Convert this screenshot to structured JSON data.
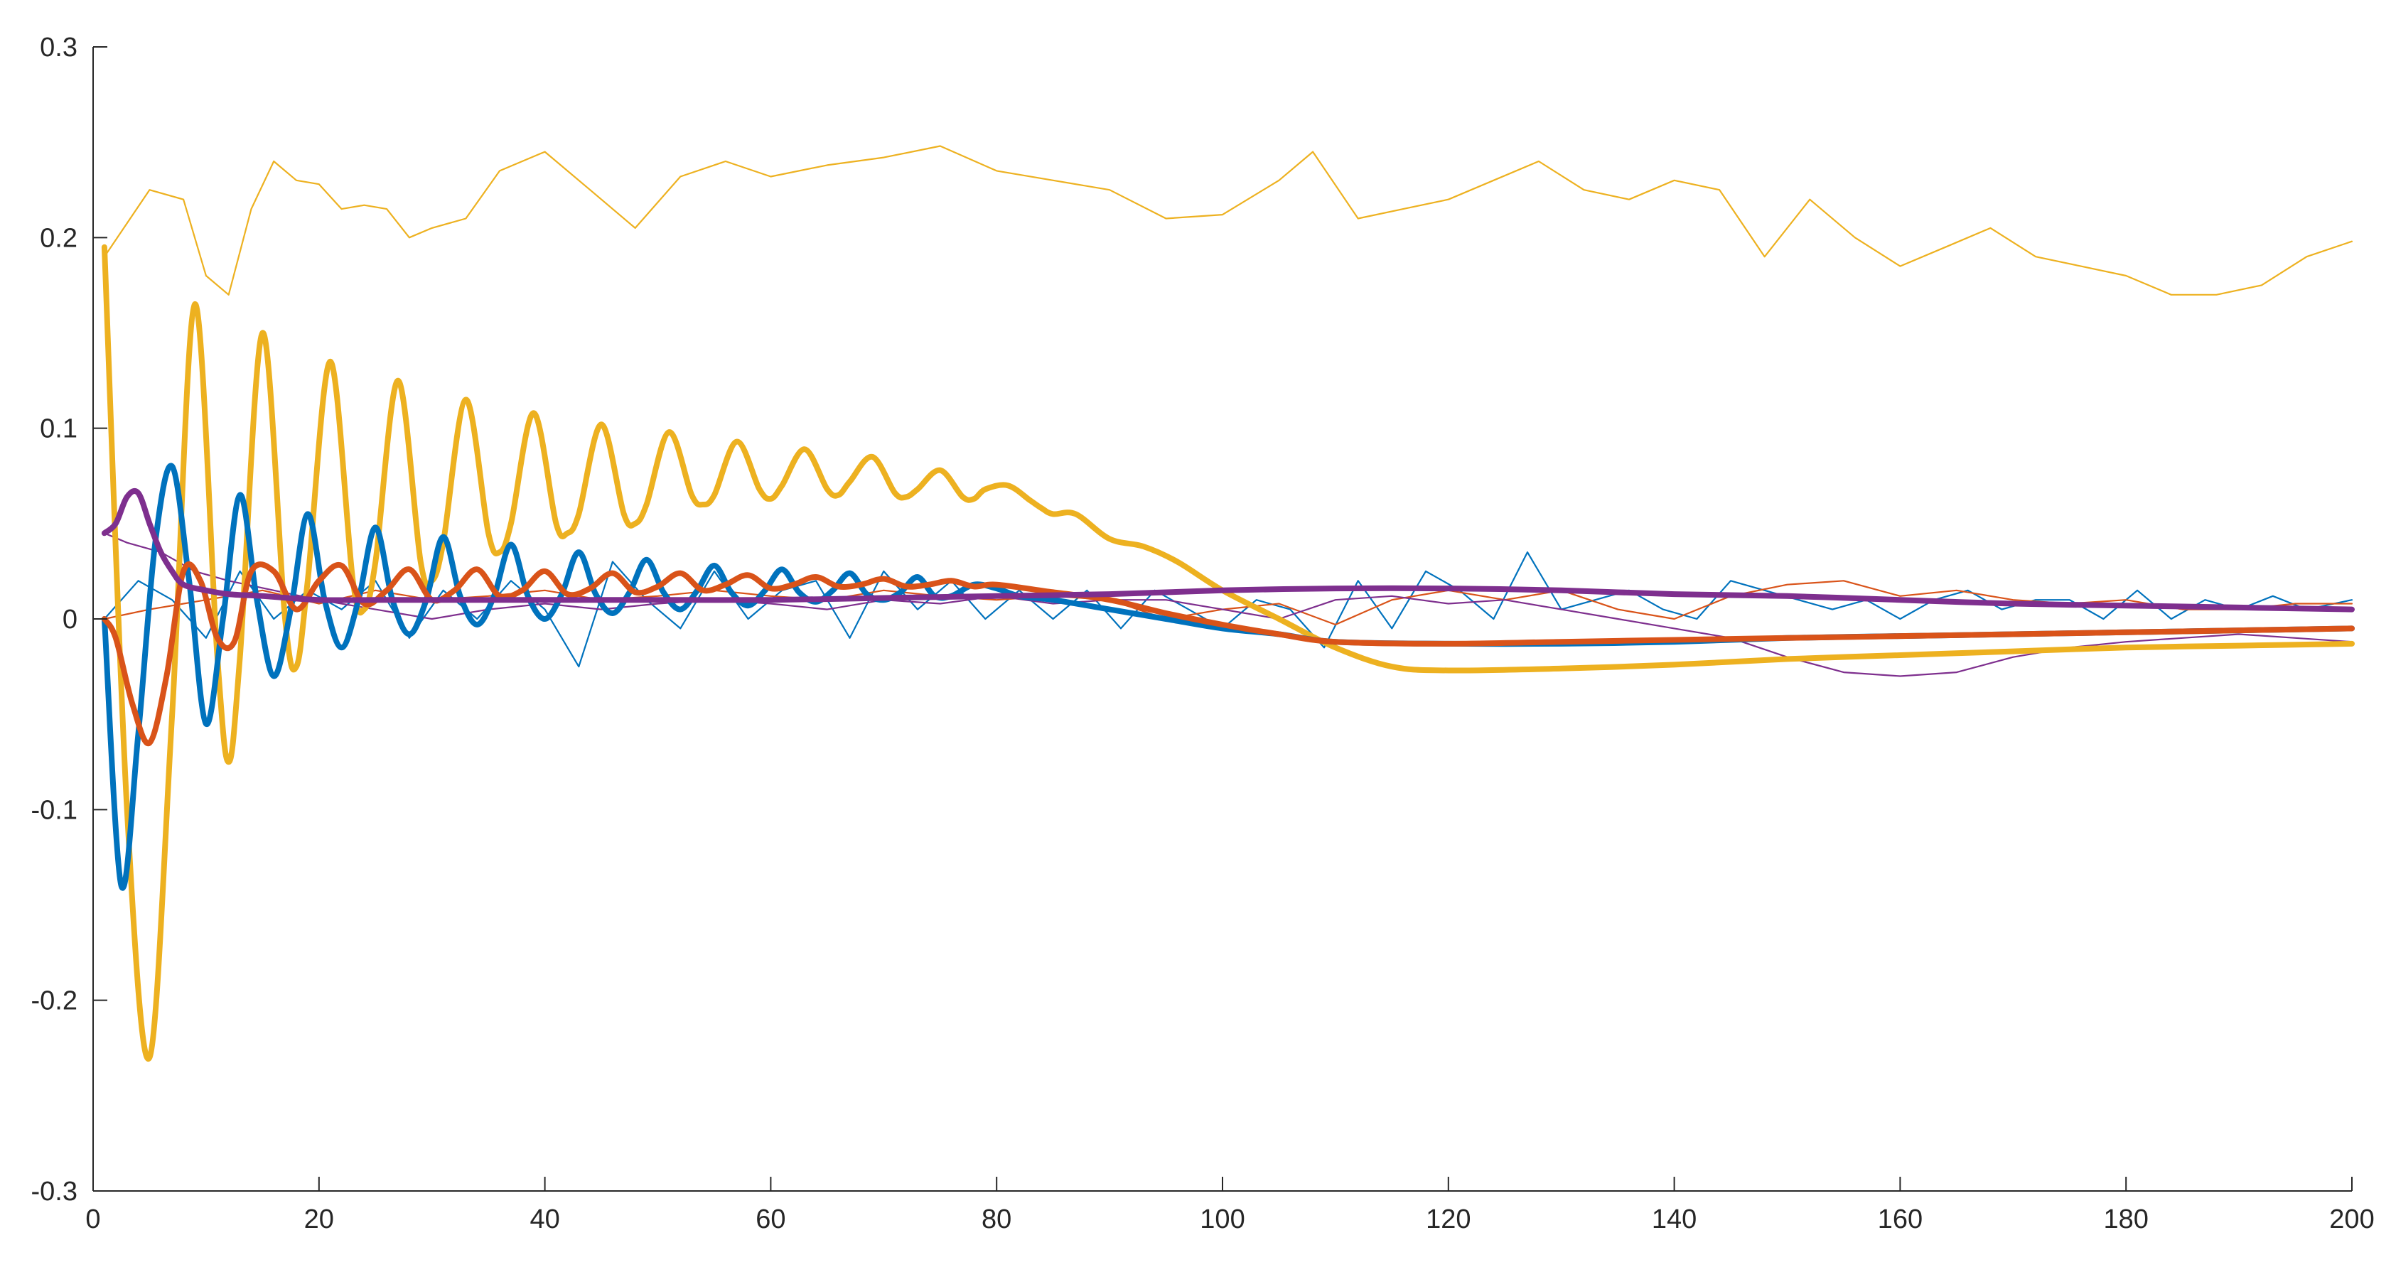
{
  "chart_data": {
    "type": "line",
    "title": "",
    "xlabel": "",
    "ylabel": "",
    "xlim": [
      0,
      200
    ],
    "ylim": [
      -0.3,
      0.3
    ],
    "x_ticks": [
      "0",
      "20",
      "40",
      "60",
      "80",
      "100",
      "120",
      "140",
      "160",
      "180",
      "200"
    ],
    "y_ticks": [
      "-0.3",
      "-0.2",
      "-0.1",
      "0",
      "0.1",
      "0.2",
      "0.3"
    ],
    "grid": false,
    "legend": "none",
    "colors": {
      "blue": "#0072bd",
      "orange": "#d95319",
      "yellow": "#edb120",
      "purple": "#7e2f8e"
    },
    "series": [
      {
        "color": "#edb120",
        "weight": "thin",
        "x": [
          1,
          5,
          8,
          10,
          12,
          14,
          16,
          18,
          20,
          22,
          24,
          26,
          28,
          30,
          33,
          36,
          40,
          44,
          48,
          52,
          56,
          60,
          65,
          70,
          75,
          80,
          85,
          90,
          95,
          100,
          105,
          108,
          112,
          116,
          120,
          124,
          128,
          132,
          136,
          140,
          144,
          148,
          152,
          156,
          160,
          164,
          168,
          172,
          176,
          180,
          184,
          188,
          192,
          196,
          200
        ],
        "y": [
          0.19,
          0.225,
          0.22,
          0.18,
          0.17,
          0.215,
          0.24,
          0.23,
          0.228,
          0.215,
          0.217,
          0.215,
          0.2,
          0.205,
          0.21,
          0.235,
          0.245,
          0.225,
          0.205,
          0.232,
          0.24,
          0.232,
          0.238,
          0.242,
          0.248,
          0.235,
          0.23,
          0.225,
          0.21,
          0.212,
          0.23,
          0.245,
          0.21,
          0.215,
          0.22,
          0.23,
          0.24,
          0.225,
          0.22,
          0.23,
          0.225,
          0.19,
          0.22,
          0.2,
          0.185,
          0.195,
          0.205,
          0.19,
          0.185,
          0.18,
          0.17,
          0.17,
          0.175,
          0.19,
          0.198
        ]
      },
      {
        "color": "#0072bd",
        "weight": "thin",
        "x": [
          1,
          4,
          7,
          10,
          13,
          16,
          19,
          22,
          25,
          28,
          31,
          34,
          37,
          40,
          43,
          46,
          49,
          52,
          55,
          58,
          61,
          64,
          67,
          70,
          73,
          76,
          79,
          82,
          85,
          88,
          91,
          94,
          97,
          100,
          103,
          106,
          109,
          112,
          115,
          118,
          121,
          124,
          127,
          130,
          133,
          136,
          139,
          142,
          145,
          148,
          151,
          154,
          157,
          160,
          163,
          166,
          169,
          172,
          175,
          178,
          181,
          184,
          187,
          190,
          193,
          196,
          200
        ],
        "y": [
          0.0,
          0.02,
          0.01,
          -0.01,
          0.025,
          0.0,
          0.015,
          0.005,
          0.02,
          -0.01,
          0.015,
          0.0,
          0.02,
          0.005,
          -0.025,
          0.03,
          0.01,
          -0.005,
          0.025,
          0.0,
          0.015,
          0.02,
          -0.01,
          0.025,
          0.005,
          0.02,
          0.0,
          0.015,
          0.0,
          0.015,
          -0.005,
          0.015,
          0.005,
          -0.005,
          0.01,
          0.005,
          -0.015,
          0.02,
          -0.005,
          0.025,
          0.015,
          0.0,
          0.035,
          0.005,
          0.01,
          0.015,
          0.005,
          0.0,
          0.02,
          0.015,
          0.01,
          0.005,
          0.01,
          0.0,
          0.01,
          0.015,
          0.005,
          0.01,
          0.01,
          0.0,
          0.015,
          0.0,
          0.01,
          0.005,
          0.012,
          0.005,
          0.01
        ]
      },
      {
        "color": "#d95319",
        "weight": "thin",
        "x": [
          1,
          5,
          10,
          15,
          20,
          25,
          30,
          35,
          40,
          45,
          50,
          55,
          60,
          65,
          70,
          75,
          80,
          85,
          90,
          95,
          100,
          105,
          110,
          115,
          120,
          125,
          130,
          135,
          140,
          145,
          150,
          155,
          160,
          165,
          170,
          175,
          180,
          185,
          190,
          195,
          200
        ],
        "y": [
          0.0,
          0.005,
          0.01,
          0.015,
          0.008,
          0.015,
          0.01,
          0.012,
          0.015,
          0.01,
          0.012,
          0.015,
          0.012,
          0.01,
          0.015,
          0.012,
          0.01,
          0.012,
          0.01,
          0.0,
          0.005,
          0.008,
          -0.003,
          0.01,
          0.015,
          0.01,
          0.015,
          0.005,
          0.0,
          0.012,
          0.018,
          0.02,
          0.012,
          0.015,
          0.01,
          0.008,
          0.01,
          0.005,
          0.005,
          0.008,
          0.008
        ]
      },
      {
        "color": "#7e2f8e",
        "weight": "thin",
        "x": [
          1,
          3,
          6,
          9,
          12,
          16,
          20,
          25,
          30,
          35,
          40,
          45,
          50,
          55,
          60,
          65,
          70,
          75,
          80,
          85,
          90,
          95,
          100,
          105,
          110,
          115,
          120,
          125,
          130,
          135,
          140,
          145,
          150,
          155,
          160,
          165,
          170,
          175,
          180,
          185,
          190,
          195,
          200
        ],
        "y": [
          0.045,
          0.04,
          0.035,
          0.025,
          0.02,
          0.015,
          0.01,
          0.005,
          0.0,
          0.005,
          0.008,
          0.005,
          0.008,
          0.01,
          0.008,
          0.005,
          0.01,
          0.008,
          0.012,
          0.008,
          0.01,
          0.01,
          0.005,
          0.0,
          0.01,
          0.012,
          0.008,
          0.01,
          0.005,
          0.0,
          -0.005,
          -0.01,
          -0.02,
          -0.028,
          -0.03,
          -0.028,
          -0.02,
          -0.015,
          -0.012,
          -0.01,
          -0.008,
          -0.01,
          -0.012
        ]
      },
      {
        "color": "#edb120",
        "weight": "thick",
        "x": [
          1,
          3,
          5,
          7,
          9,
          11,
          12,
          13,
          15,
          17,
          18,
          19,
          21,
          23,
          24,
          25,
          27,
          29,
          30,
          31,
          33,
          35,
          36,
          37,
          39,
          41,
          42,
          43,
          45,
          47,
          48,
          49,
          51,
          53,
          54,
          55,
          57,
          59,
          60,
          61,
          63,
          65,
          66,
          67,
          69,
          71,
          72,
          73,
          75,
          77,
          78,
          79,
          81,
          83,
          84,
          85,
          87,
          90,
          93,
          96,
          100,
          105,
          110,
          115,
          120,
          130,
          140,
          150,
          160,
          170,
          180,
          190,
          200
        ],
        "y": [
          0.195,
          -0.1,
          -0.23,
          -0.05,
          0.165,
          -0.02,
          -0.075,
          -0.02,
          0.15,
          0.0,
          -0.025,
          0.02,
          0.135,
          0.02,
          0.005,
          0.03,
          0.125,
          0.03,
          0.02,
          0.04,
          0.115,
          0.045,
          0.035,
          0.05,
          0.108,
          0.05,
          0.045,
          0.055,
          0.102,
          0.055,
          0.05,
          0.06,
          0.098,
          0.065,
          0.06,
          0.065,
          0.093,
          0.068,
          0.063,
          0.07,
          0.089,
          0.068,
          0.065,
          0.072,
          0.085,
          0.066,
          0.064,
          0.068,
          0.078,
          0.064,
          0.063,
          0.068,
          0.07,
          0.062,
          0.058,
          0.055,
          0.055,
          0.042,
          0.038,
          0.03,
          0.015,
          0.0,
          -0.015,
          -0.025,
          -0.027,
          -0.026,
          -0.024,
          -0.021,
          -0.019,
          -0.017,
          -0.015,
          -0.014,
          -0.013
        ]
      },
      {
        "color": "#0072bd",
        "weight": "thick",
        "x": [
          1,
          2.5,
          4,
          5.5,
          7,
          8.5,
          10,
          11.5,
          13,
          14.5,
          16,
          17.5,
          19,
          20.5,
          22,
          23.5,
          25,
          26.5,
          28,
          29.5,
          31,
          32.5,
          34,
          35.5,
          37,
          38.5,
          40,
          41.5,
          43,
          44.5,
          46,
          47.5,
          49,
          50.5,
          52,
          53.5,
          55,
          56.5,
          58,
          59.5,
          61,
          62.5,
          64,
          65.5,
          67,
          68.5,
          70,
          71.5,
          73,
          74.5,
          76,
          78,
          80,
          82,
          85,
          90,
          95,
          100,
          105,
          110,
          120,
          130,
          140,
          150,
          160,
          170,
          180,
          190,
          200
        ],
        "y": [
          0.0,
          -0.14,
          -0.06,
          0.04,
          0.08,
          0.02,
          -0.055,
          0.0,
          0.065,
          0.01,
          -0.03,
          0.005,
          0.055,
          0.01,
          -0.015,
          0.01,
          0.048,
          0.01,
          -0.008,
          0.01,
          0.043,
          0.012,
          -0.003,
          0.012,
          0.039,
          0.012,
          0.0,
          0.013,
          0.035,
          0.013,
          0.003,
          0.014,
          0.031,
          0.014,
          0.005,
          0.015,
          0.028,
          0.014,
          0.007,
          0.015,
          0.026,
          0.014,
          0.009,
          0.015,
          0.024,
          0.013,
          0.01,
          0.014,
          0.022,
          0.012,
          0.012,
          0.018,
          0.016,
          0.012,
          0.01,
          0.005,
          0.0,
          -0.005,
          -0.008,
          -0.012,
          -0.013,
          -0.013,
          -0.012,
          -0.01,
          -0.009,
          -0.008,
          -0.007,
          -0.006,
          -0.005
        ]
      },
      {
        "color": "#d95319",
        "weight": "thick",
        "x": [
          1,
          2,
          3.5,
          5,
          6.5,
          8,
          9.5,
          11,
          12.5,
          14,
          16,
          18,
          20,
          22,
          24,
          26,
          28,
          30,
          32,
          34,
          36,
          38,
          40,
          42,
          44,
          46,
          48,
          50,
          52,
          54,
          56,
          58,
          60,
          62,
          64,
          66,
          68,
          70,
          72,
          74,
          76,
          78,
          80,
          85,
          90,
          95,
          100,
          105,
          110,
          120,
          130,
          140,
          150,
          160,
          170,
          180,
          190,
          200
        ],
        "y": [
          0.0,
          -0.01,
          -0.045,
          -0.065,
          -0.03,
          0.025,
          0.02,
          -0.01,
          -0.012,
          0.025,
          0.025,
          0.005,
          0.02,
          0.028,
          0.008,
          0.015,
          0.026,
          0.01,
          0.015,
          0.026,
          0.012,
          0.015,
          0.025,
          0.013,
          0.016,
          0.024,
          0.014,
          0.017,
          0.024,
          0.015,
          0.018,
          0.023,
          0.016,
          0.018,
          0.022,
          0.017,
          0.018,
          0.021,
          0.017,
          0.018,
          0.02,
          0.017,
          0.018,
          0.014,
          0.01,
          0.003,
          -0.003,
          -0.008,
          -0.012,
          -0.013,
          -0.012,
          -0.011,
          -0.01,
          -0.009,
          -0.008,
          -0.007,
          -0.006,
          -0.005
        ]
      },
      {
        "color": "#7e2f8e",
        "weight": "thick",
        "x": [
          1,
          2,
          3,
          4,
          5,
          6,
          7,
          8,
          10,
          12,
          15,
          20,
          25,
          30,
          40,
          50,
          60,
          70,
          80,
          90,
          100,
          110,
          120,
          130,
          140,
          150,
          160,
          170,
          180,
          190,
          200
        ],
        "y": [
          0.045,
          0.05,
          0.064,
          0.066,
          0.05,
          0.035,
          0.025,
          0.018,
          0.015,
          0.013,
          0.012,
          0.01,
          0.01,
          0.01,
          0.01,
          0.01,
          0.01,
          0.011,
          0.012,
          0.013,
          0.015,
          0.016,
          0.016,
          0.015,
          0.013,
          0.012,
          0.01,
          0.008,
          0.007,
          0.006,
          0.005
        ]
      }
    ]
  }
}
